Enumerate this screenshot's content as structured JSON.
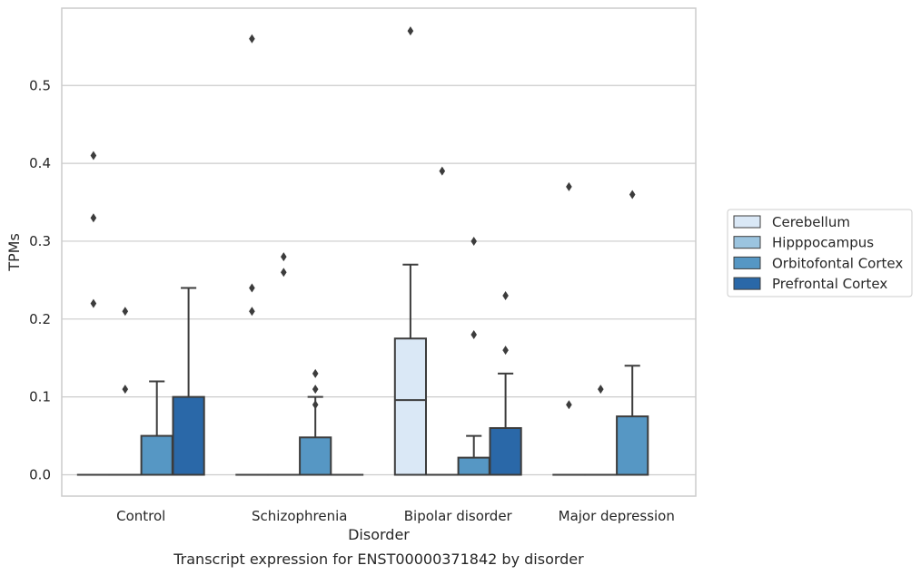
{
  "chart_data": {
    "type": "boxplot",
    "title": "",
    "caption": "Transcript expression for ENST00000371842 by disorder",
    "xlabel": "Disorder",
    "ylabel": "TPMs",
    "ylim": [
      -0.028,
      0.605
    ],
    "yticks": [
      0.0,
      0.1,
      0.2,
      0.3,
      0.4,
      0.5
    ],
    "ytick_labels": [
      "0.0",
      "0.1",
      "0.2",
      "0.3",
      "0.4",
      "0.5"
    ],
    "grid": "horizontal",
    "legend_position": "right",
    "categories": [
      "Control",
      "Schizophrenia",
      "Bipolar disorder",
      "Major depression"
    ],
    "series": [
      {
        "name": "Cerebellum",
        "color": "#dae8f6",
        "boxes": [
          {
            "q1": 0,
            "median": 0,
            "q3": 0,
            "whislo": 0,
            "whishi": 0,
            "fliers": [
              0.41,
              0.33,
              0.22
            ]
          },
          {
            "q1": 0,
            "median": 0,
            "q3": 0,
            "whislo": 0,
            "whishi": 0,
            "fliers": [
              0.56,
              0.24,
              0.21
            ]
          },
          {
            "q1": 0,
            "median": 0.096,
            "q3": 0.175,
            "whislo": 0,
            "whishi": 0.27,
            "fliers": [
              0.57
            ]
          },
          {
            "q1": 0,
            "median": 0,
            "q3": 0,
            "whislo": 0,
            "whishi": 0,
            "fliers": [
              0.37,
              0.09
            ]
          }
        ]
      },
      {
        "name": "Hipppocampus",
        "color": "#9bc4df",
        "boxes": [
          {
            "q1": 0,
            "median": 0,
            "q3": 0,
            "whislo": 0,
            "whishi": 0,
            "fliers": [
              0.21,
              0.11
            ]
          },
          {
            "q1": 0,
            "median": 0,
            "q3": 0,
            "whislo": 0,
            "whishi": 0,
            "fliers": [
              0.28,
              0.26
            ]
          },
          {
            "q1": 0,
            "median": 0,
            "q3": 0,
            "whislo": 0,
            "whishi": 0,
            "fliers": [
              0.39
            ]
          },
          {
            "q1": 0,
            "median": 0,
            "q3": 0,
            "whislo": 0,
            "whishi": 0,
            "fliers": [
              0.11
            ]
          }
        ]
      },
      {
        "name": "Orbitofontal Cortex",
        "color": "#5697c4",
        "boxes": [
          {
            "q1": 0,
            "median": 0,
            "q3": 0.05,
            "whislo": 0,
            "whishi": 0.12,
            "fliers": []
          },
          {
            "q1": 0,
            "median": 0,
            "q3": 0.048,
            "whislo": 0,
            "whishi": 0.1,
            "fliers": [
              0.13,
              0.11,
              0.09
            ]
          },
          {
            "q1": 0,
            "median": 0,
            "q3": 0.022,
            "whislo": 0,
            "whishi": 0.05,
            "fliers": [
              0.3,
              0.18
            ]
          },
          {
            "q1": 0,
            "median": 0,
            "q3": 0.075,
            "whislo": 0,
            "whishi": 0.14,
            "fliers": [
              0.36
            ]
          }
        ]
      },
      {
        "name": "Prefrontal Cortex",
        "color": "#2a68a8",
        "boxes": [
          {
            "q1": 0,
            "median": 0,
            "q3": 0.1,
            "whislo": 0,
            "whishi": 0.24,
            "fliers": []
          },
          {
            "q1": 0,
            "median": 0,
            "q3": 0,
            "whislo": 0,
            "whishi": 0,
            "fliers": []
          },
          {
            "q1": 0,
            "median": 0,
            "q3": 0.06,
            "whislo": 0,
            "whishi": 0.13,
            "fliers": [
              0.23,
              0.16
            ]
          },
          null
        ]
      }
    ]
  }
}
